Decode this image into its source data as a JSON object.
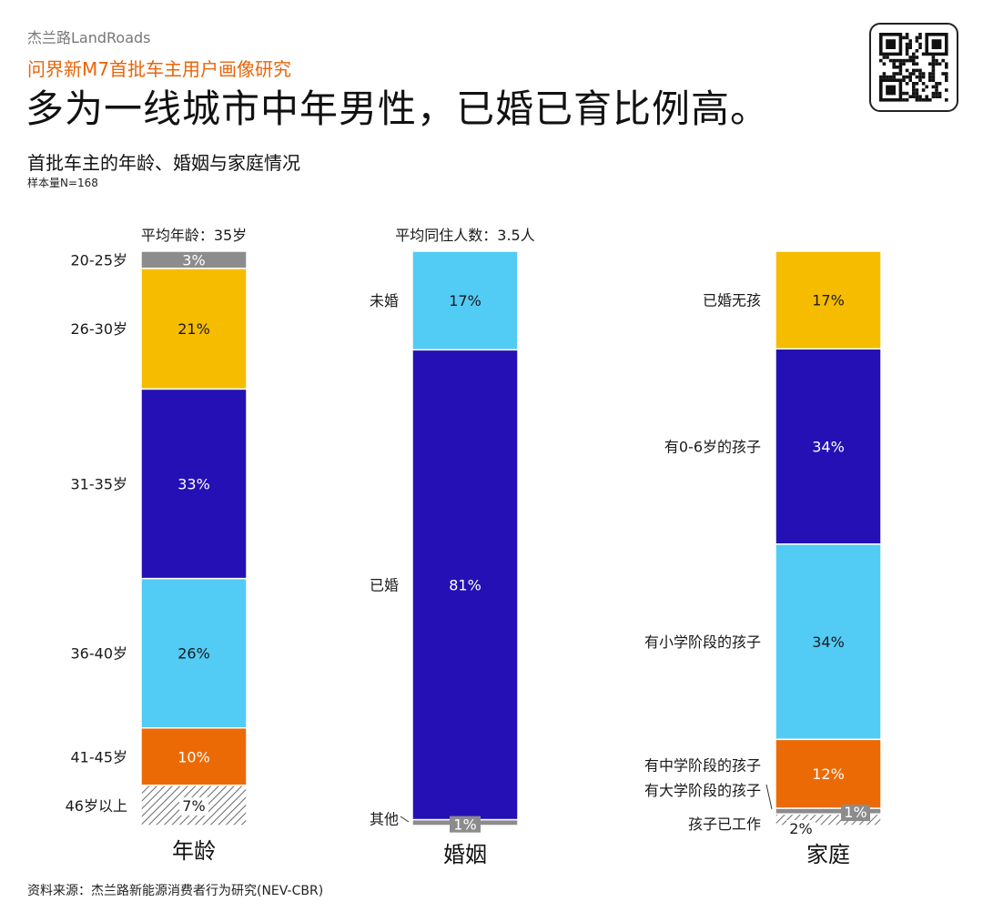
{
  "brand": "杰兰路LandRoads",
  "subtitle": "问界新M7首批车主用户画像研究",
  "headline": "多为一线城市中年男性，已婚已育比例高。",
  "chart_title": "首批车主的年龄、婚姻与家庭情况",
  "sample": "样本量N=168",
  "source": "资料来源：杰兰路新能源消费者行为研究(NEV-CBR)",
  "qr_icon": "qr-code-icon",
  "colors": {
    "accent": "#E8650A",
    "gray": "#8C8C8C",
    "yellow": "#F6BC00",
    "indigo": "#2510B5",
    "cyan": "#52CBF5",
    "orange": "#EC6A05"
  },
  "chart_data": [
    {
      "type": "bar",
      "stacked": true,
      "xlabel": "年龄",
      "annotation": "平均年龄：35岁",
      "segments": [
        {
          "label": "20-25岁",
          "value": 3,
          "display": "3%",
          "color": "#8C8C8C"
        },
        {
          "label": "26-30岁",
          "value": 21,
          "display": "21%",
          "color": "#F6BC00"
        },
        {
          "label": "31-35岁",
          "value": 33,
          "display": "33%",
          "color": "#2510B5"
        },
        {
          "label": "36-40岁",
          "value": 26,
          "display": "26%",
          "color": "#52CBF5"
        },
        {
          "label": "41-45岁",
          "value": 10,
          "display": "10%",
          "color": "#EC6A05"
        },
        {
          "label": "46岁以上",
          "value": 7,
          "display": "7%",
          "color": "hatch"
        }
      ]
    },
    {
      "type": "bar",
      "stacked": true,
      "xlabel": "婚姻",
      "annotation": "平均同住人数：3.5人",
      "segments": [
        {
          "label": "未婚",
          "value": 17,
          "display": "17%",
          "color": "#52CBF5"
        },
        {
          "label": "已婚",
          "value": 81,
          "display": "81%",
          "color": "#2510B5"
        },
        {
          "label": "其他",
          "value": 1,
          "display": "1%",
          "color": "#8C8C8C"
        }
      ]
    },
    {
      "type": "bar",
      "stacked": true,
      "xlabel": "家庭",
      "annotation": "",
      "segments": [
        {
          "label": "已婚无孩",
          "value": 17,
          "display": "17%",
          "color": "#F6BC00"
        },
        {
          "label": "有0-6岁的孩子",
          "value": 34,
          "display": "34%",
          "color": "#2510B5"
        },
        {
          "label": "有小学阶段的孩子",
          "value": 34,
          "display": "34%",
          "color": "#52CBF5"
        },
        {
          "label": "有中学阶段的孩子",
          "value": 12,
          "display": "12%",
          "color": "#EC6A05"
        },
        {
          "label": "有大学阶段的孩子",
          "value": 1,
          "display": "1%",
          "color": "#8C8C8C"
        },
        {
          "label": "孩子已工作",
          "value": 2,
          "display": "2%",
          "color": "hatch"
        }
      ]
    }
  ]
}
